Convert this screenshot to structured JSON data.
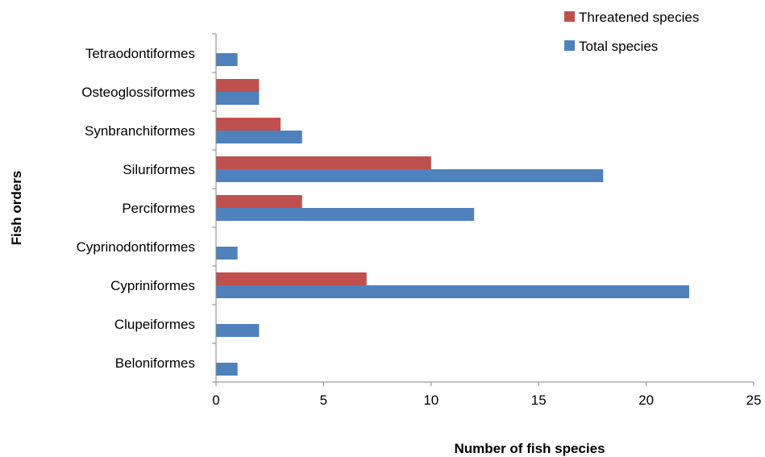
{
  "chart_data": {
    "type": "bar",
    "orientation": "horizontal",
    "title": "",
    "xlabel": "Number of fish species",
    "ylabel": "Fish orders",
    "xlim": [
      0,
      25
    ],
    "xticks": [
      0,
      5,
      10,
      15,
      20,
      25
    ],
    "grid": false,
    "legend_position": "top-right",
    "categories": [
      "Tetraodontiformes",
      "Osteoglossiformes",
      "Synbranchiformes",
      "Siluriformes",
      "Perciformes",
      "Cyprinodontiformes",
      "Cypriniformes",
      "Clupeiformes",
      "Beloniformes"
    ],
    "series": [
      {
        "name": "Threatened species",
        "color": "#c0504d",
        "values": [
          0,
          2,
          3,
          10,
          4,
          0,
          7,
          0,
          0
        ]
      },
      {
        "name": "Total species",
        "color": "#4f81bd",
        "values": [
          1,
          2,
          4,
          18,
          12,
          1,
          22,
          2,
          1
        ]
      }
    ]
  }
}
